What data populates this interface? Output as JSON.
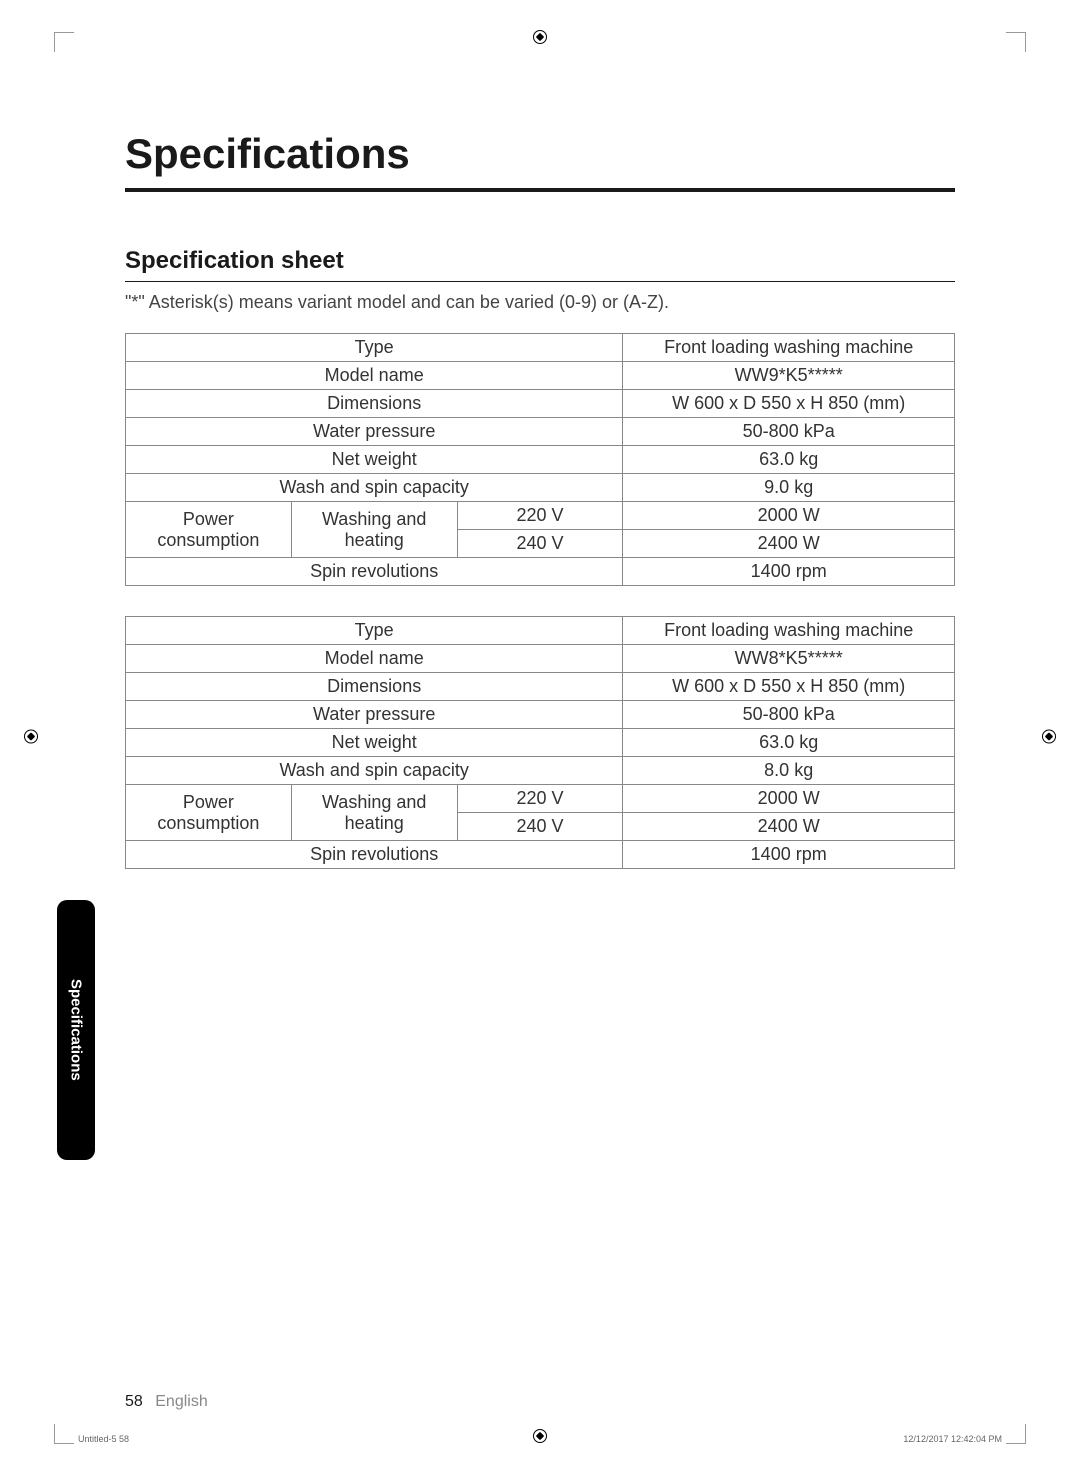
{
  "page": {
    "main_title": "Specifications",
    "section_title": "Specification sheet",
    "note": "\"*\" Asterisk(s) means variant model and can be varied (0-9) or (A-Z).",
    "page_number": "58",
    "language": "English",
    "side_tab": "Specifications",
    "footer_file": "Untitled-5   58",
    "footer_date": "12/12/2017   12:42:04 PM"
  },
  "table1": {
    "rows": {
      "type_label": "Type",
      "type_value": "Front loading washing machine",
      "model_label": "Model name",
      "model_value": "WW9*K5*****",
      "dimensions_label": "Dimensions",
      "dimensions_value": "W 600 x D 550 x H 850 (mm)",
      "pressure_label": "Water pressure",
      "pressure_value": "50-800 kPa",
      "weight_label": "Net weight",
      "weight_value": "63.0 kg",
      "capacity_label": "Wash and spin capacity",
      "capacity_value": "9.0 kg",
      "power_label": "Power consumption",
      "washing_label": "Washing and heating",
      "volt_220": "220 V",
      "watt_220": "2000 W",
      "volt_240": "240 V",
      "watt_240": "2400 W",
      "spin_label": "Spin revolutions",
      "spin_value": "1400 rpm"
    }
  },
  "table2": {
    "rows": {
      "type_label": "Type",
      "type_value": "Front loading washing machine",
      "model_label": "Model name",
      "model_value": "WW8*K5*****",
      "dimensions_label": "Dimensions",
      "dimensions_value": "W 600 x D 550 x H 850 (mm)",
      "pressure_label": "Water pressure",
      "pressure_value": "50-800 kPa",
      "weight_label": "Net weight",
      "weight_value": "63.0 kg",
      "capacity_label": "Wash and spin capacity",
      "capacity_value": "8.0 kg",
      "power_label": "Power consumption",
      "washing_label": "Washing and heating",
      "volt_220": "220 V",
      "watt_220": "2000 W",
      "volt_240": "240 V",
      "watt_240": "2400 W",
      "spin_label": "Spin revolutions",
      "spin_value": "1400 rpm"
    }
  }
}
